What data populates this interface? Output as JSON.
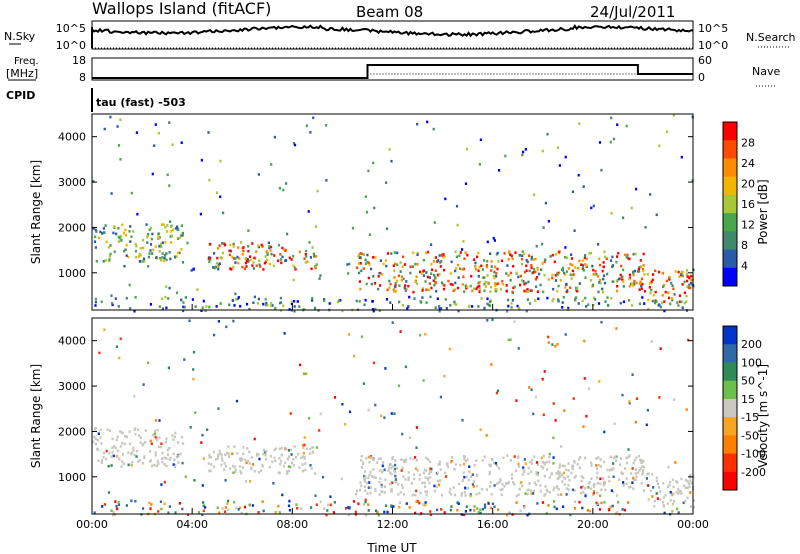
{
  "header": {
    "station": "Wallops Island (fitACF)",
    "beam": "Beam 08",
    "date": "24/Jul/2011"
  },
  "noise_panel": {
    "left_label": "N.Sky",
    "left_ticks": [
      "10^5",
      "10^0"
    ],
    "right_label": "N.Search",
    "right_ticks": [
      "10^5",
      "10^0"
    ]
  },
  "freq_panel": {
    "left_label_line1": "Freq.",
    "left_label_line2": "[MHz]",
    "left_ticks": [
      "18",
      "8"
    ],
    "right_label": "Nave",
    "right_ticks": [
      "60",
      "0"
    ]
  },
  "cpid": {
    "label": "CPID",
    "value": "tau (fast) -503"
  },
  "colors": {
    "power_scale": [
      "#0000ff",
      "#2b5ca8",
      "#3f8a6c",
      "#4aa64c",
      "#a8c83a",
      "#f3b600",
      "#ff8c00",
      "#ff4a00",
      "#ff0000"
    ],
    "velocity_scale": [
      "#0033cc",
      "#2f6aa8",
      "#2e8b57",
      "#6cc04a",
      "#c8c8c0",
      "#f5a623",
      "#ff7f00",
      "#ff3000",
      "#ff0000"
    ]
  },
  "chart_data": [
    {
      "type": "heatmap",
      "name": "power-panel",
      "xlabel": "",
      "ylabel": "Slant Range [km]",
      "x_range": [
        "00:00",
        "00:00"
      ],
      "ylim": [
        180,
        4500
      ],
      "y_ticks": [
        1000,
        2000,
        3000,
        4000
      ],
      "colorbar": {
        "label": "Power [dB]",
        "tick_labels": [
          "4",
          "8",
          "12",
          "16",
          "20",
          "24",
          "28"
        ],
        "range": [
          0,
          30
        ]
      },
      "echo_regions": [
        {
          "t_start": 0.0,
          "t_end": 3.6,
          "range_min": 1250,
          "range_max": 2100,
          "level": "moderate"
        },
        {
          "t_start": 4.6,
          "t_end": 9.0,
          "range_min": 1100,
          "range_max": 1700,
          "level": "strong"
        },
        {
          "t_start": 10.5,
          "t_end": 22.0,
          "range_min": 600,
          "range_max": 1500,
          "level": "strong"
        },
        {
          "t_start": 22.0,
          "t_end": 24.0,
          "range_min": 350,
          "range_max": 1100,
          "level": "strong"
        }
      ]
    },
    {
      "type": "heatmap",
      "name": "velocity-panel",
      "xlabel": "Time UT",
      "ylabel": "Slant Range [km]",
      "x_ticks": [
        "00:00",
        "04:00",
        "08:00",
        "12:00",
        "16:00",
        "20:00",
        "00:00"
      ],
      "ylim": [
        180,
        4500
      ],
      "y_ticks": [
        1000,
        2000,
        3000,
        4000
      ],
      "colorbar": {
        "label": "Velocity [m s^-1]",
        "tick_labels": [
          "200",
          "100",
          "50",
          "15",
          "-15",
          "-50",
          "-100",
          "-200"
        ],
        "range": [
          -250,
          250
        ]
      },
      "echo_regions": [
        {
          "t_start": 0.0,
          "t_end": 3.6,
          "range_min": 1250,
          "range_max": 2100,
          "level": "ground-scatter"
        },
        {
          "t_start": 4.6,
          "t_end": 9.0,
          "range_min": 1100,
          "range_max": 1700,
          "level": "ground-scatter"
        },
        {
          "t_start": 10.5,
          "t_end": 22.0,
          "range_min": 600,
          "range_max": 1500,
          "level": "ground-scatter"
        },
        {
          "t_start": 22.0,
          "t_end": 24.0,
          "range_min": 350,
          "range_max": 1100,
          "level": "ground-scatter"
        }
      ]
    }
  ]
}
